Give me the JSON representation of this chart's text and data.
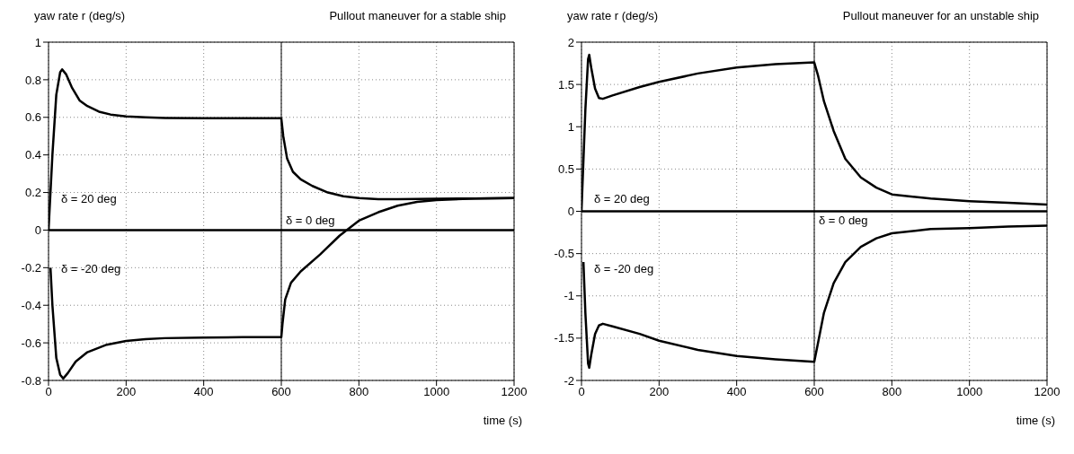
{
  "chart_data": [
    {
      "type": "line",
      "title": "Pullout maneuver for a stable ship",
      "ylabel": "yaw rate r (deg/s)",
      "xlabel": "time (s)",
      "xlim": [
        0,
        1200
      ],
      "xticks": [
        0,
        200,
        400,
        600,
        800,
        1000,
        1200
      ],
      "ylim": [
        -0.8,
        1
      ],
      "yticks": [
        -0.8,
        -0.6,
        -0.4,
        -0.2,
        0,
        0.2,
        0.4,
        0.6,
        0.8,
        1
      ],
      "grid": true,
      "line_style": "solid",
      "marker": "none",
      "series": [
        {
          "color": "#000000",
          "x": [
            0,
            10,
            20,
            30,
            35,
            45,
            60,
            80,
            100,
            130,
            160,
            200,
            250,
            300,
            400,
            500,
            600,
            605,
            615,
            630,
            650,
            680,
            720,
            760,
            800,
            850,
            900,
            1000,
            1100,
            1200
          ],
          "values": [
            0,
            0.4,
            0.72,
            0.84,
            0.855,
            0.83,
            0.76,
            0.69,
            0.66,
            0.63,
            0.615,
            0.605,
            0.6,
            0.597,
            0.595,
            0.595,
            0.595,
            0.5,
            0.38,
            0.31,
            0.27,
            0.235,
            0.2,
            0.18,
            0.17,
            0.165,
            0.165,
            0.167,
            0.168,
            0.17
          ]
        },
        {
          "color": "#000000",
          "x": [
            5,
            10,
            20,
            30,
            38,
            50,
            70,
            100,
            150,
            200,
            250,
            300,
            400,
            500,
            600,
            603,
            610,
            625,
            650,
            700,
            750,
            800,
            850,
            900,
            950,
            1000,
            1100,
            1200
          ],
          "values": [
            -0.2,
            -0.4,
            -0.68,
            -0.77,
            -0.79,
            -0.76,
            -0.7,
            -0.65,
            -0.61,
            -0.59,
            -0.58,
            -0.575,
            -0.572,
            -0.57,
            -0.57,
            -0.5,
            -0.37,
            -0.28,
            -0.22,
            -0.13,
            -0.03,
            0.05,
            0.095,
            0.13,
            0.15,
            0.16,
            0.168,
            0.17
          ]
        }
      ],
      "ref_lines": [
        {
          "axis": "y",
          "value": 0,
          "color": "#000000"
        },
        {
          "axis": "x",
          "value": 600,
          "color": "#000000"
        }
      ],
      "annotations": [
        "δ = 20 deg",
        "δ = 0 deg",
        "δ = -20 deg"
      ]
    },
    {
      "type": "line",
      "title": "Pullout maneuver for an unstable ship",
      "ylabel": "yaw rate r (deg/s)",
      "xlabel": "time (s)",
      "xlim": [
        0,
        1200
      ],
      "xticks": [
        0,
        200,
        400,
        600,
        800,
        1000,
        1200
      ],
      "ylim": [
        -2,
        2
      ],
      "yticks": [
        -2,
        -1.5,
        -1,
        -0.5,
        0,
        0.5,
        1,
        1.5,
        2
      ],
      "grid": true,
      "line_style": "solid",
      "marker": "none",
      "series": [
        {
          "color": "#000000",
          "x": [
            0,
            10,
            17,
            20,
            25,
            35,
            45,
            55,
            80,
            150,
            200,
            300,
            400,
            500,
            600,
            610,
            625,
            650,
            680,
            720,
            760,
            800,
            900,
            1000,
            1100,
            1200
          ],
          "values": [
            0,
            1.2,
            1.8,
            1.85,
            1.7,
            1.45,
            1.34,
            1.33,
            1.37,
            1.47,
            1.53,
            1.63,
            1.7,
            1.74,
            1.76,
            1.6,
            1.3,
            0.95,
            0.62,
            0.4,
            0.28,
            0.2,
            0.15,
            0.12,
            0.1,
            0.08
          ]
        },
        {
          "color": "#000000",
          "x": [
            5,
            10,
            17,
            20,
            25,
            35,
            45,
            55,
            80,
            150,
            200,
            300,
            400,
            500,
            600,
            610,
            625,
            650,
            680,
            720,
            760,
            800,
            900,
            1000,
            1100,
            1200
          ],
          "values": [
            -0.6,
            -1.2,
            -1.8,
            -1.85,
            -1.7,
            -1.45,
            -1.35,
            -1.33,
            -1.36,
            -1.45,
            -1.53,
            -1.64,
            -1.71,
            -1.75,
            -1.78,
            -1.55,
            -1.2,
            -0.85,
            -0.6,
            -0.42,
            -0.32,
            -0.26,
            -0.21,
            -0.2,
            -0.18,
            -0.17
          ]
        }
      ],
      "ref_lines": [
        {
          "axis": "y",
          "value": 0,
          "color": "#000000"
        },
        {
          "axis": "x",
          "value": 600,
          "color": "#000000"
        }
      ],
      "annotations": [
        "δ = 20 deg",
        "δ = 0 deg",
        "δ = -20 deg"
      ]
    }
  ]
}
